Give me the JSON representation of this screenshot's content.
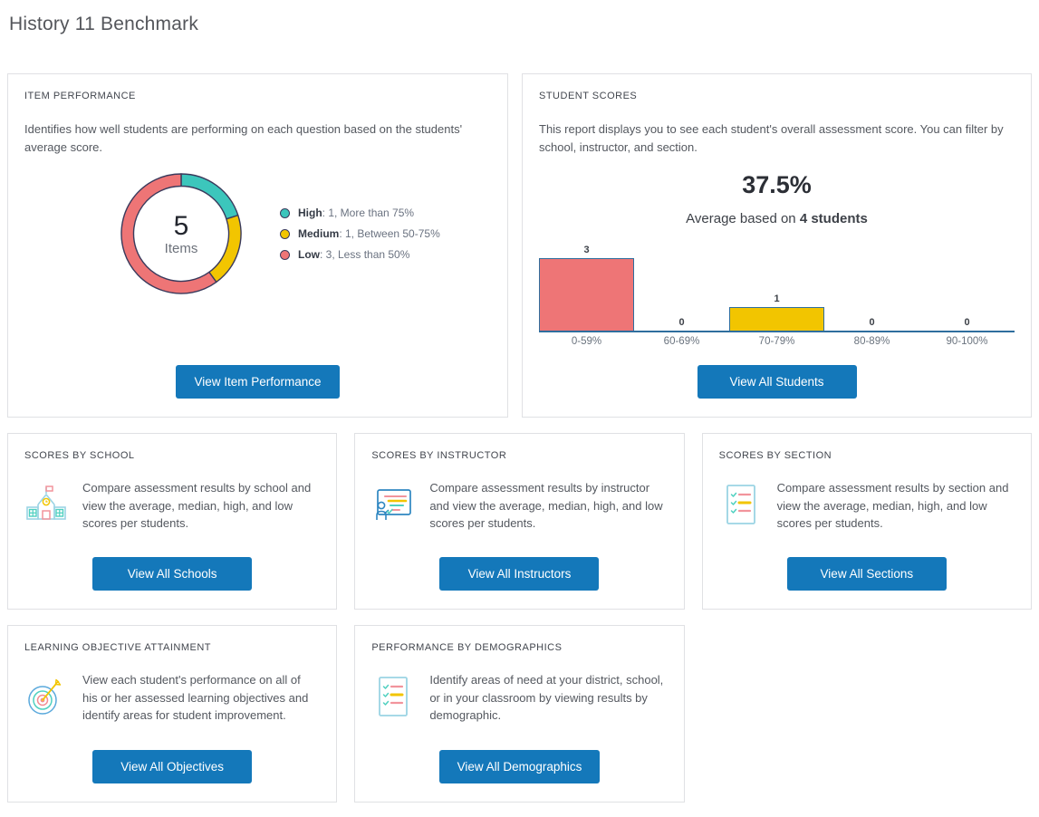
{
  "page_title": "History 11 Benchmark",
  "colors": {
    "accent_button": "#1478ba",
    "high_teal": "#3cc6bc",
    "medium_yellow": "#f2c500",
    "low_red": "#ee7576",
    "donut_outline": "#3a3a5c",
    "bar_border": "#2f6e9e",
    "axis_blue": "#2f6e9e",
    "card_border": "#e0e1e4"
  },
  "cards": {
    "item_performance": {
      "title": "ITEM PERFORMANCE",
      "description": "Identifies how well students are performing on each question based on the students' average score.",
      "button": "View Item Performance"
    },
    "student_scores": {
      "title": "STUDENT SCORES",
      "description": "This report displays you to see each student's overall assessment score. You can filter by school, instructor, and section.",
      "average": "37.5%",
      "caption_prefix": "Average based on ",
      "caption_bold": "4 students",
      "button": "View All Students"
    }
  },
  "reports": [
    {
      "title": "SCORES BY SCHOOL",
      "description": "Compare assessment results by school and view the average, median, high, and low scores per students.",
      "button": "View All Schools",
      "icon": "school-icon"
    },
    {
      "title": "SCORES BY INSTRUCTOR",
      "description": "Compare assessment results by instructor and view the average, median, high, and low scores per students.",
      "button": "View All Instructors",
      "icon": "instructor-icon"
    },
    {
      "title": "SCORES BY SECTION",
      "description": "Compare assessment results by section and view the average, median, high, and low scores per students.",
      "button": "View All Sections",
      "icon": "checklist-icon"
    },
    {
      "title": "LEARNING OBJECTIVE ATTAINMENT",
      "description": "View each student's performance on all of his or her assessed learning objectives and identify areas for student improvement.",
      "button": "View All Objectives",
      "icon": "target-icon"
    },
    {
      "title": "PERFORMANCE BY DEMOGRAPHICS",
      "description": "Identify areas of need at your district, school, or in your classroom by viewing results by demographic.",
      "button": "View All Demographics",
      "icon": "checklist-icon"
    }
  ],
  "chart_data": [
    {
      "type": "pie",
      "title": "Item Performance",
      "center_value": "5",
      "center_label": "Items",
      "total_items": 5,
      "legend_position": "right",
      "segments": [
        {
          "name": "High",
          "value": 1,
          "description": "More than 75%",
          "color": "#3cc6bc"
        },
        {
          "name": "Medium",
          "value": 1,
          "description": "Between 50-75%",
          "color": "#f2c500"
        },
        {
          "name": "Low",
          "value": 3,
          "description": "Less than 50%",
          "color": "#ee7576"
        }
      ]
    },
    {
      "type": "bar",
      "title": "Student Scores Distribution",
      "categories": [
        "0-59%",
        "60-69%",
        "70-79%",
        "80-89%",
        "90-100%"
      ],
      "values": [
        3,
        0,
        1,
        0,
        0
      ],
      "bar_colors": [
        "#ee7576",
        "none",
        "#f2c500",
        "none",
        "none"
      ],
      "xlabel": "",
      "ylabel": "",
      "ylim": [
        0,
        3
      ],
      "grid": false
    }
  ]
}
